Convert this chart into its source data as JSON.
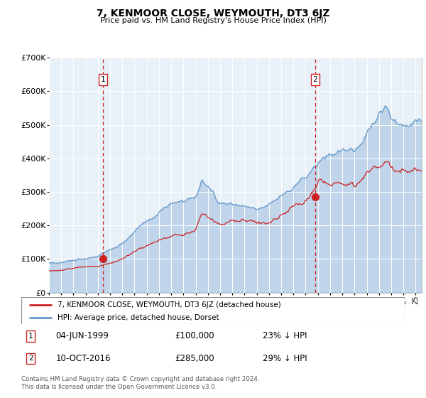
{
  "title": "7, KENMOOR CLOSE, WEYMOUTH, DT3 6JZ",
  "subtitle": "Price paid vs. HM Land Registry's House Price Index (HPI)",
  "hpi_color": "#6699cc",
  "red_color": "#cc2222",
  "background_color": "#e8f0f8",
  "ylim": [
    0,
    700000
  ],
  "yticks": [
    0,
    100000,
    200000,
    300000,
    400000,
    500000,
    600000,
    700000
  ],
  "ytick_labels": [
    "£0",
    "£100K",
    "£200K",
    "£300K",
    "£400K",
    "£500K",
    "£600K",
    "£700K"
  ],
  "purchase1_x": 1999.42,
  "purchase1_y": 100000,
  "purchase2_x": 2016.78,
  "purchase2_y": 285000,
  "legend_label_red": "7, KENMOOR CLOSE, WEYMOUTH, DT3 6JZ (detached house)",
  "legend_label_hpi": "HPI: Average price, detached house, Dorset",
  "footer": "Contains HM Land Registry data © Crown copyright and database right 2024.\nThis data is licensed under the Open Government Licence v3.0.",
  "note1_date": "04-JUN-1999",
  "note1_price": "£100,000",
  "note1_pct": "23% ↓ HPI",
  "note2_date": "10-OCT-2016",
  "note2_price": "£285,000",
  "note2_pct": "29% ↓ HPI",
  "xmin": 1995.0,
  "xmax": 2025.5
}
